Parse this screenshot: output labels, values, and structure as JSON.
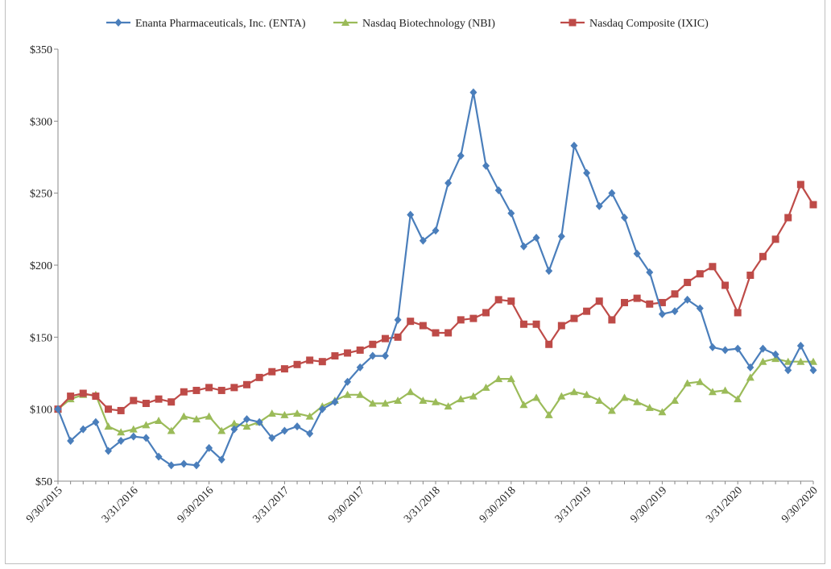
{
  "chart_data": {
    "type": "line",
    "title": "",
    "xlabel": "",
    "ylabel": "",
    "ylim": [
      50,
      350
    ],
    "y_ticks": [
      "$50",
      "$100",
      "$150",
      "$200",
      "$250",
      "$300",
      "$350"
    ],
    "y_tick_values": [
      50,
      100,
      150,
      200,
      250,
      300,
      350
    ],
    "x_tick_labels": [
      "9/30/2015",
      "3/31/2016",
      "9/30/2016",
      "3/31/2017",
      "9/30/2017",
      "3/31/2018",
      "9/30/2018",
      "3/31/2019",
      "9/30/2019",
      "3/31/2020",
      "9/30/2020"
    ],
    "x_tick_indices": [
      0,
      6,
      12,
      18,
      24,
      30,
      36,
      42,
      48,
      54,
      60
    ],
    "grid": false,
    "legend_position": "top",
    "series": [
      {
        "name": "Enanta Pharmaceuticals, Inc. (ENTA)",
        "color": "#4a7ebb",
        "marker": "diamond",
        "values": [
          100,
          78,
          86,
          91,
          71,
          78,
          81,
          80,
          67,
          61,
          62,
          61,
          73,
          65,
          86,
          93,
          91,
          80,
          85,
          88,
          83,
          100,
          105,
          119,
          129,
          137,
          137,
          162,
          235,
          217,
          224,
          257,
          276,
          320,
          269,
          252,
          236,
          213,
          219,
          196,
          220,
          283,
          264,
          241,
          250,
          233,
          208,
          195,
          166,
          168,
          176,
          170,
          143,
          141,
          142,
          129,
          142,
          138,
          127,
          144,
          127
        ]
      },
      {
        "name": "Nasdaq Biotechnology (NBI)",
        "color": "#9bbb59",
        "marker": "triangle",
        "values": [
          100,
          107,
          110,
          110,
          88,
          84,
          86,
          89,
          92,
          85,
          95,
          93,
          95,
          85,
          90,
          88,
          91,
          97,
          96,
          97,
          95,
          102,
          106,
          110,
          110,
          104,
          104,
          106,
          112,
          106,
          105,
          102,
          107,
          109,
          115,
          121,
          121,
          103,
          108,
          96,
          109,
          112,
          110,
          106,
          99,
          108,
          105,
          101,
          98,
          106,
          118,
          119,
          112,
          113,
          107,
          122,
          133,
          135,
          133,
          133,
          133
        ]
      },
      {
        "name": "Nasdaq Composite (IXIC)",
        "color": "#be4b48",
        "marker": "square",
        "values": [
          100,
          109,
          111,
          109,
          100,
          99,
          106,
          104,
          107,
          105,
          112,
          113,
          115,
          113,
          115,
          117,
          122,
          126,
          128,
          131,
          134,
          133,
          137,
          139,
          141,
          145,
          149,
          150,
          161,
          158,
          153,
          153,
          162,
          163,
          167,
          176,
          175,
          159,
          159,
          145,
          158,
          163,
          168,
          175,
          162,
          174,
          177,
          173,
          174,
          180,
          188,
          194,
          199,
          186,
          167,
          193,
          206,
          218,
          233,
          256,
          242
        ]
      }
    ]
  }
}
